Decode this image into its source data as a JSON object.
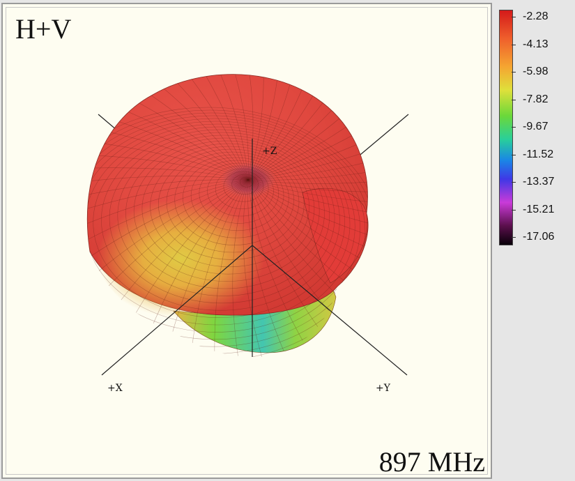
{
  "panel": {
    "mode_label": "H+V",
    "frequency_label": "897 MHz"
  },
  "axes": {
    "x_label": "+X",
    "y_label": "+Y",
    "z_label": "+Z"
  },
  "colorbar": {
    "ticks": [
      "-2.28",
      "-4.13",
      "-5.98",
      "-7.82",
      "-9.67",
      "-11.52",
      "-13.37",
      "-15.21",
      "-17.06"
    ],
    "colors": [
      "#d41a1a",
      "#ef5f2c",
      "#f5a531",
      "#dfe03b",
      "#6bd83a",
      "#29cf9a",
      "#1a86e6",
      "#3f38e6",
      "#c93bd8",
      "#5a0f4c",
      "#080008"
    ]
  },
  "chart_data": {
    "type": "heatmap",
    "title": "H+V",
    "annotation": "897 MHz",
    "axis_labels": [
      "+X",
      "+Y",
      "+Z"
    ],
    "colorbar_range": [
      -17.06,
      -2.28
    ],
    "colorbar_ticks": [
      -2.28,
      -4.13,
      -5.98,
      -7.82,
      -9.67,
      -11.52,
      -13.37,
      -15.21,
      -17.06
    ],
    "grid": true
  }
}
